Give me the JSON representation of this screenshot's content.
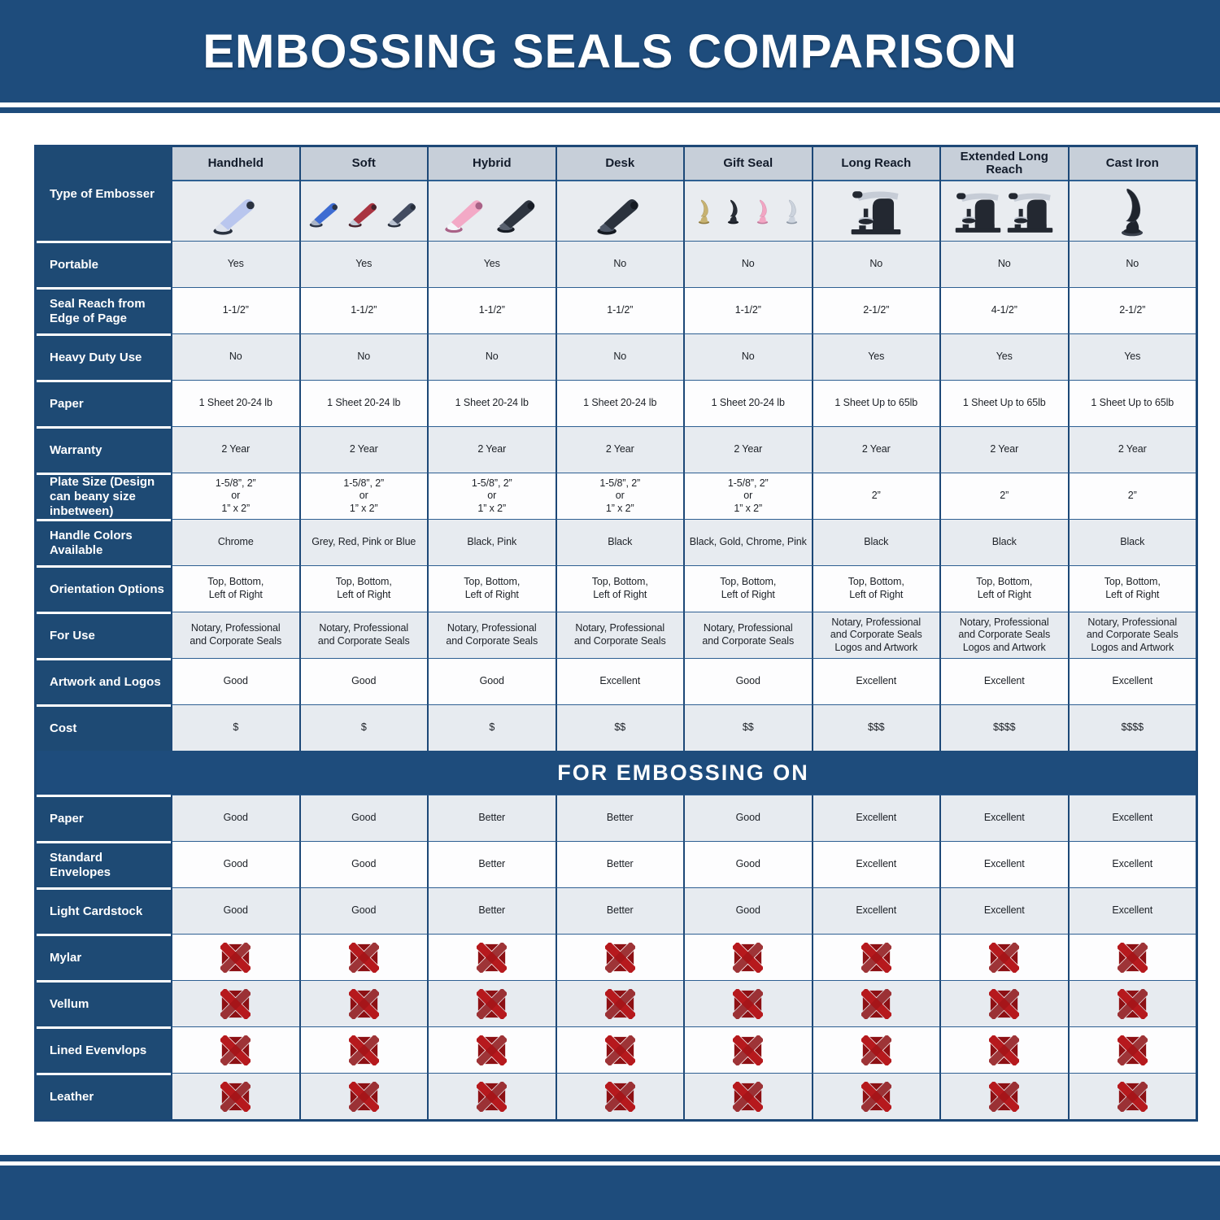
{
  "title": "EMBOSSING SEALS COMPARISON",
  "section_title": "FOR EMBOSSING ON",
  "type_row_label": "Type of Embosser",
  "colors": {
    "navy_band": "#1e4c7c",
    "navy_label": "#1e4a74",
    "grid_border": "#1d4877",
    "grid_line": "#2e5f92",
    "header_gray": "#c7cfd9",
    "row_gray": "#e7ebf0",
    "row_white": "#fdfdfe",
    "x_red": "#b71a1e",
    "x_red_dark": "#8d1014"
  },
  "columns": [
    {
      "name": "Handheld",
      "embossers": [
        {
          "shape": "clamp",
          "color": "#b9c6ee",
          "accent": "#dde2ec",
          "dark": "#2a3240"
        }
      ]
    },
    {
      "name": "Soft",
      "embossers": [
        {
          "shape": "clamp",
          "color": "#3e6cd2",
          "accent": "#aab4c6",
          "dark": "#2b3446"
        },
        {
          "shape": "clamp",
          "color": "#a93441",
          "accent": "#c3cdd9",
          "dark": "#46222c"
        },
        {
          "shape": "clamp",
          "color": "#434c61",
          "accent": "#b9c2d0",
          "dark": "#262d3b"
        }
      ]
    },
    {
      "name": "Hybrid",
      "embossers": [
        {
          "shape": "clamp",
          "color": "#f3a9c6",
          "accent": "#f4f6f9",
          "dark": "#a96287"
        },
        {
          "shape": "clamp",
          "color": "#2e3540",
          "accent": "#59616f",
          "dark": "#181d26"
        }
      ]
    },
    {
      "name": "Desk",
      "embossers": [
        {
          "shape": "clamp",
          "color": "#2b323d",
          "accent": "#4d5666",
          "dark": "#151a22"
        }
      ]
    },
    {
      "name": "Gift Seal",
      "embossers": [
        {
          "shape": "upright",
          "color": "#c7b272",
          "dark": "#8e7a3e"
        },
        {
          "shape": "upright",
          "color": "#262b34",
          "dark": "#11151c"
        },
        {
          "shape": "upright",
          "color": "#f2a6c3",
          "dark": "#c27a9c"
        },
        {
          "shape": "upright",
          "color": "#ccd3dd",
          "dark": "#8e98a6"
        }
      ]
    },
    {
      "name": "Long Reach",
      "embossers": [
        {
          "shape": "press",
          "color": "#232831",
          "accent": "#c6ccd6"
        }
      ]
    },
    {
      "name": "Extended Long Reach",
      "embossers": [
        {
          "shape": "press",
          "color": "#232831",
          "accent": "#c6ccd6"
        },
        {
          "shape": "press",
          "color": "#232831",
          "accent": "#c6ccd6"
        }
      ]
    },
    {
      "name": "Cast Iron",
      "embossers": [
        {
          "shape": "upright",
          "color": "#1f242d",
          "dark": "#3a414d"
        }
      ]
    }
  ],
  "spec_rows": [
    {
      "id": "portable",
      "label": "Portable",
      "values": [
        "Yes",
        "Yes",
        "Yes",
        "No",
        "No",
        "No",
        "No",
        "No"
      ]
    },
    {
      "id": "seal-reach",
      "label": "Seal Reach from Edge of Page",
      "values": [
        "1-1/2”",
        "1-1/2”",
        "1-1/2”",
        "1-1/2”",
        "1-1/2”",
        "2-1/2”",
        "4-1/2”",
        "2-1/2”"
      ]
    },
    {
      "id": "heavy-duty-use",
      "label": "Heavy Duty Use",
      "values": [
        "No",
        "No",
        "No",
        "No",
        "No",
        "Yes",
        "Yes",
        "Yes"
      ]
    },
    {
      "id": "paper",
      "label": "Paper",
      "values": [
        "1 Sheet 20-24 lb",
        "1 Sheet 20-24 lb",
        "1 Sheet 20-24 lb",
        "1 Sheet 20-24 lb",
        "1 Sheet 20-24 lb",
        "1 Sheet Up to 65lb",
        "1 Sheet Up to 65lb",
        "1 Sheet Up to 65lb"
      ]
    },
    {
      "id": "warranty",
      "label": "Warranty",
      "values": [
        "2 Year",
        "2 Year",
        "2 Year",
        "2 Year",
        "2 Year",
        "2 Year",
        "2 Year",
        "2 Year"
      ]
    },
    {
      "id": "plate-size",
      "label": "Plate Size (Design can beany size inbetween)",
      "values": [
        "1-5/8”, 2”\nor\n1” x 2”",
        "1-5/8”, 2”\nor\n1” x 2”",
        "1-5/8”, 2”\nor\n1” x 2”",
        "1-5/8”, 2”\nor\n1” x 2”",
        "1-5/8”, 2”\nor\n1” x 2”",
        "2”",
        "2”",
        "2”"
      ]
    },
    {
      "id": "handle-colors",
      "label": "Handle Colors Available",
      "values": [
        "Chrome",
        "Grey, Red, Pink or Blue",
        "Black, Pink",
        "Black",
        "Black, Gold, Chrome, Pink",
        "Black",
        "Black",
        "Black"
      ]
    },
    {
      "id": "orientation-options",
      "label": "Orientation Options",
      "values": [
        "Top, Bottom,\nLeft of Right",
        "Top, Bottom,\nLeft of Right",
        "Top, Bottom,\nLeft of Right",
        "Top, Bottom,\nLeft of Right",
        "Top, Bottom,\nLeft of Right",
        "Top, Bottom,\nLeft of Right",
        "Top, Bottom,\nLeft of Right",
        "Top, Bottom,\nLeft of Right"
      ]
    },
    {
      "id": "for-use",
      "label": "For Use",
      "values": [
        "Notary, Professional\nand Corporate Seals",
        "Notary, Professional\nand Corporate Seals",
        "Notary, Professional\nand Corporate Seals",
        "Notary, Professional\nand Corporate Seals",
        "Notary, Professional\nand Corporate Seals",
        "Notary, Professional\nand Corporate Seals\nLogos and Artwork",
        "Notary, Professional\nand Corporate Seals\nLogos and Artwork",
        "Notary, Professional\nand Corporate Seals\nLogos and Artwork"
      ]
    },
    {
      "id": "artwork-and-logos",
      "label": "Artwork and Logos",
      "values": [
        "Good",
        "Good",
        "Good",
        "Excellent",
        "Good",
        "Excellent",
        "Excellent",
        "Excellent"
      ]
    },
    {
      "id": "cost",
      "label": "Cost",
      "values": [
        "$",
        "$",
        "$",
        "$$",
        "$$",
        "$$$",
        "$$$$",
        "$$$$"
      ]
    }
  ],
  "embossing_rows": [
    {
      "id": "paper",
      "label": "Paper",
      "type": "text",
      "values": [
        "Good",
        "Good",
        "Better",
        "Better",
        "Good",
        "Excellent",
        "Excellent",
        "Excellent"
      ]
    },
    {
      "id": "standard-envelopes",
      "label": "Standard Envelopes",
      "type": "text",
      "values": [
        "Good",
        "Good",
        "Better",
        "Better",
        "Good",
        "Excellent",
        "Excellent",
        "Excellent"
      ]
    },
    {
      "id": "light-cardstock",
      "label": "Light Cardstock",
      "type": "text",
      "values": [
        "Good",
        "Good",
        "Better",
        "Better",
        "Good",
        "Excellent",
        "Excellent",
        "Excellent"
      ]
    },
    {
      "id": "mylar",
      "label": "Mylar",
      "type": "x"
    },
    {
      "id": "vellum",
      "label": "Vellum",
      "type": "x"
    },
    {
      "id": "lined-evenvlops",
      "label": "Lined Evenvlops",
      "type": "x"
    },
    {
      "id": "leather",
      "label": "Leather",
      "type": "x"
    }
  ]
}
